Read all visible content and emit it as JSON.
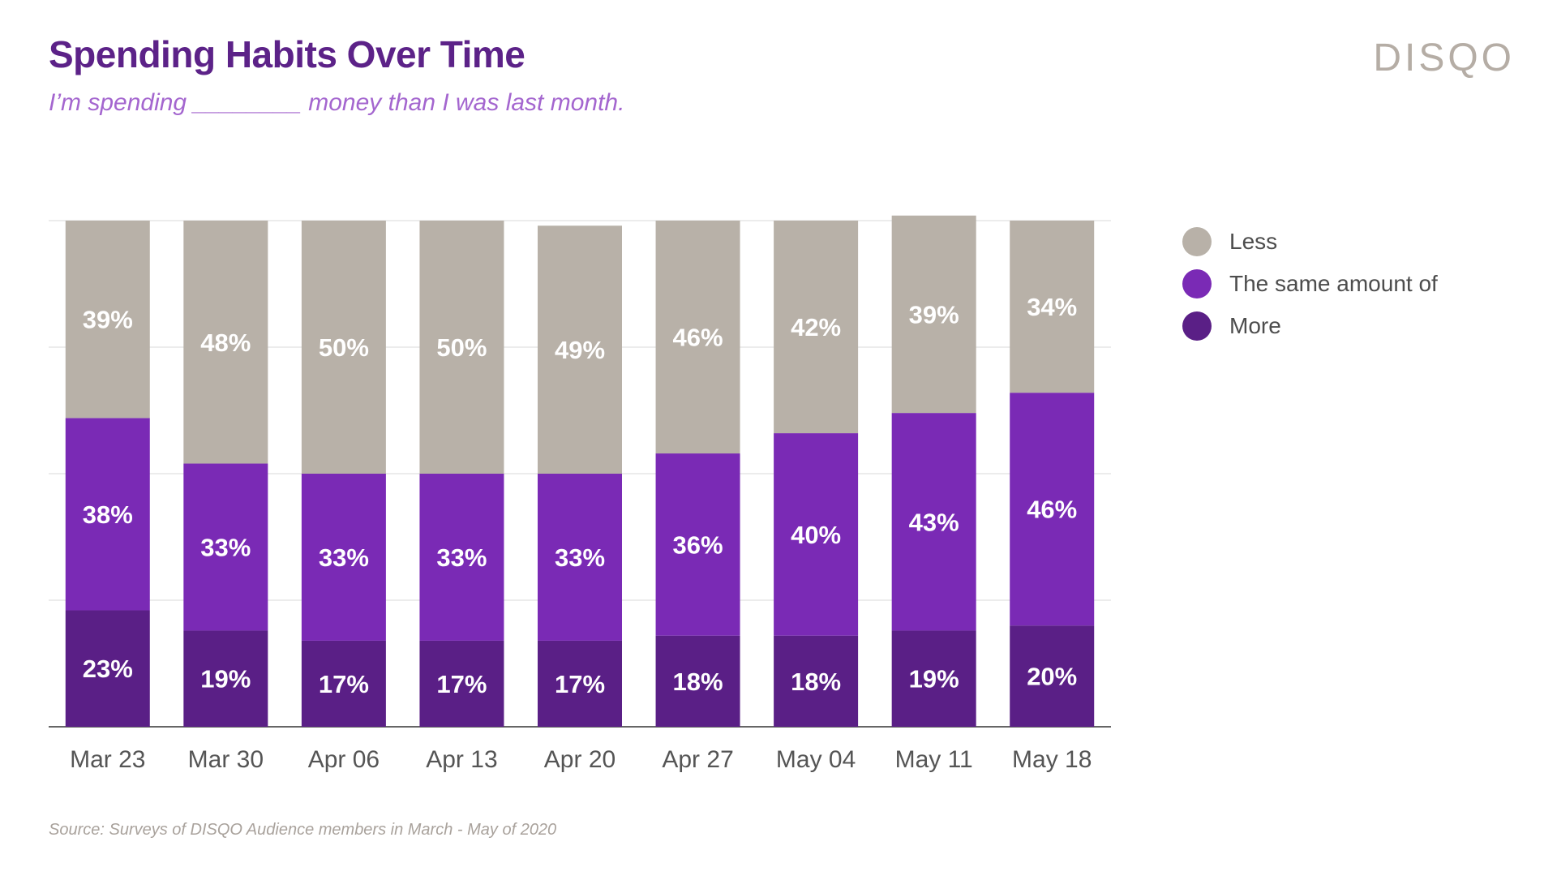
{
  "header": {
    "title": "Spending Habits Over Time",
    "subtitle": "I’m spending ________ money than I was last month.",
    "logo": "DISQO"
  },
  "footer": {
    "source": "Source: Surveys of DISQO Audience members in March - May of 2020"
  },
  "colors": {
    "less": "#b8b1a8",
    "same": "#7a2ab5",
    "more": "#5a1f86",
    "title": "#5c2288",
    "subtitle": "#a466cf"
  },
  "legend": [
    {
      "label": "Less",
      "color": "#b8b1a8"
    },
    {
      "label": "The same amount of",
      "color": "#7a2ab5"
    },
    {
      "label": "More",
      "color": "#5a1f86"
    }
  ],
  "chart_data": {
    "type": "bar",
    "stacked": true,
    "title": "Spending Habits Over Time",
    "subtitle": "I’m spending ________ money than I was last month.",
    "xlabel": "",
    "ylabel": "",
    "ylim": [
      0,
      100
    ],
    "grid": true,
    "legend_position": "right",
    "categories": [
      "Mar 23",
      "Mar 30",
      "Apr 06",
      "Apr 13",
      "Apr 20",
      "Apr 27",
      "May 04",
      "May 11",
      "May 18"
    ],
    "series": [
      {
        "name": "More",
        "color": "#5a1f86",
        "values": [
          23,
          19,
          17,
          17,
          17,
          18,
          18,
          19,
          20
        ]
      },
      {
        "name": "The same amount of",
        "color": "#7a2ab5",
        "values": [
          38,
          33,
          33,
          33,
          33,
          36,
          40,
          43,
          46
        ]
      },
      {
        "name": "Less",
        "color": "#b8b1a8",
        "values": [
          39,
          48,
          50,
          50,
          49,
          46,
          42,
          39,
          34
        ]
      }
    ]
  }
}
